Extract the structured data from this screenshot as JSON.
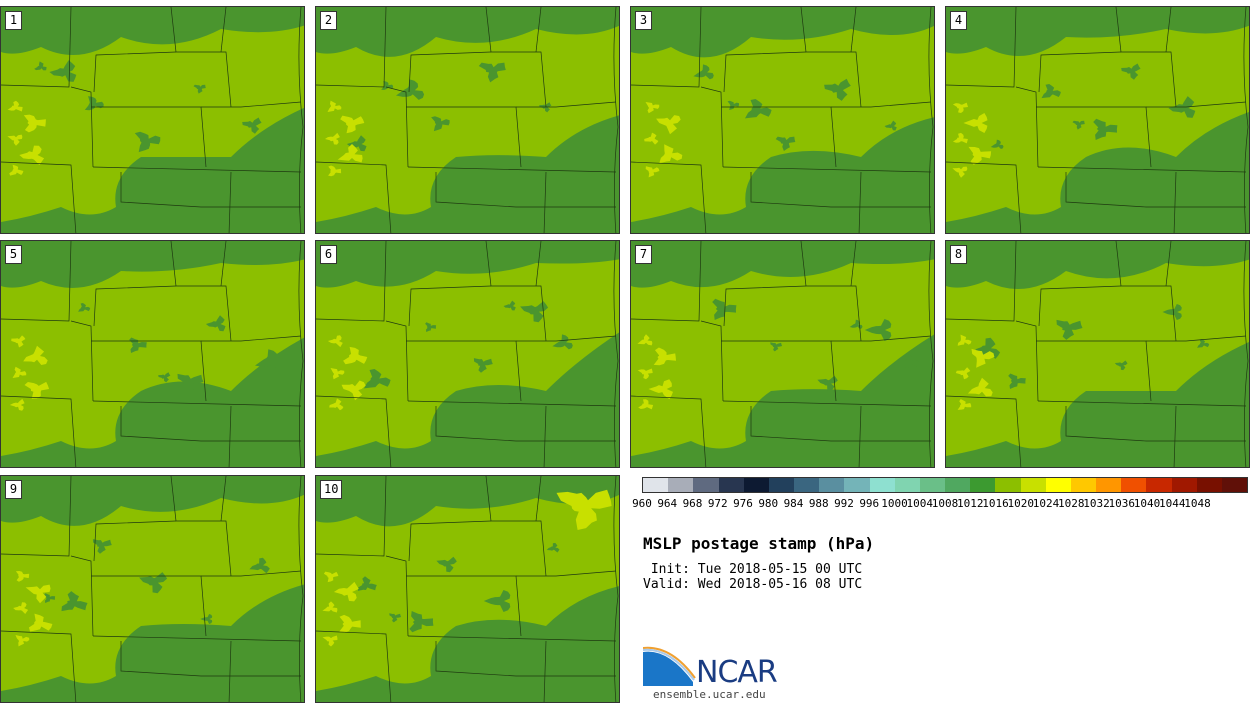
{
  "panels": [
    {
      "label": "1"
    },
    {
      "label": "2"
    },
    {
      "label": "3"
    },
    {
      "label": "4"
    },
    {
      "label": "5"
    },
    {
      "label": "6"
    },
    {
      "label": "7"
    },
    {
      "label": "8"
    },
    {
      "label": "9"
    },
    {
      "label": "10"
    }
  ],
  "colorbar": {
    "colors": [
      "#e0e4ea",
      "#a8adb8",
      "#5f6a80",
      "#283650",
      "#0d1a32",
      "#22405c",
      "#3a6680",
      "#5a8fa0",
      "#74b4b8",
      "#8ee0d0",
      "#80d4b0",
      "#6abf88",
      "#50a860",
      "#3c9a30",
      "#8cbf00",
      "#c8e000",
      "#ffff00",
      "#ffc800",
      "#ff9600",
      "#f05000",
      "#c82800",
      "#a01800",
      "#781000",
      "#601008"
    ],
    "tick_labels": [
      "960",
      "964",
      "968",
      "972",
      "976",
      "980",
      "984",
      "988",
      "992",
      "996",
      "1000",
      "1004",
      "1008",
      "1012",
      "1016",
      "1020",
      "1024",
      "1028",
      "1032",
      "1036",
      "1040",
      "1044",
      "1048"
    ]
  },
  "title": "MSLP postage stamp (hPa)",
  "init_line": " Init: Tue 2018-05-15 00 UTC",
  "valid_line": "Valid: Wed 2018-05-16 08 UTC",
  "logo": {
    "text": "NCAR",
    "url": "ensemble.ucar.edu"
  },
  "map_colors": {
    "high": "#8cbf00",
    "low": "#4a952e",
    "peak": "#c8e000",
    "border": "#1e3a10"
  }
}
